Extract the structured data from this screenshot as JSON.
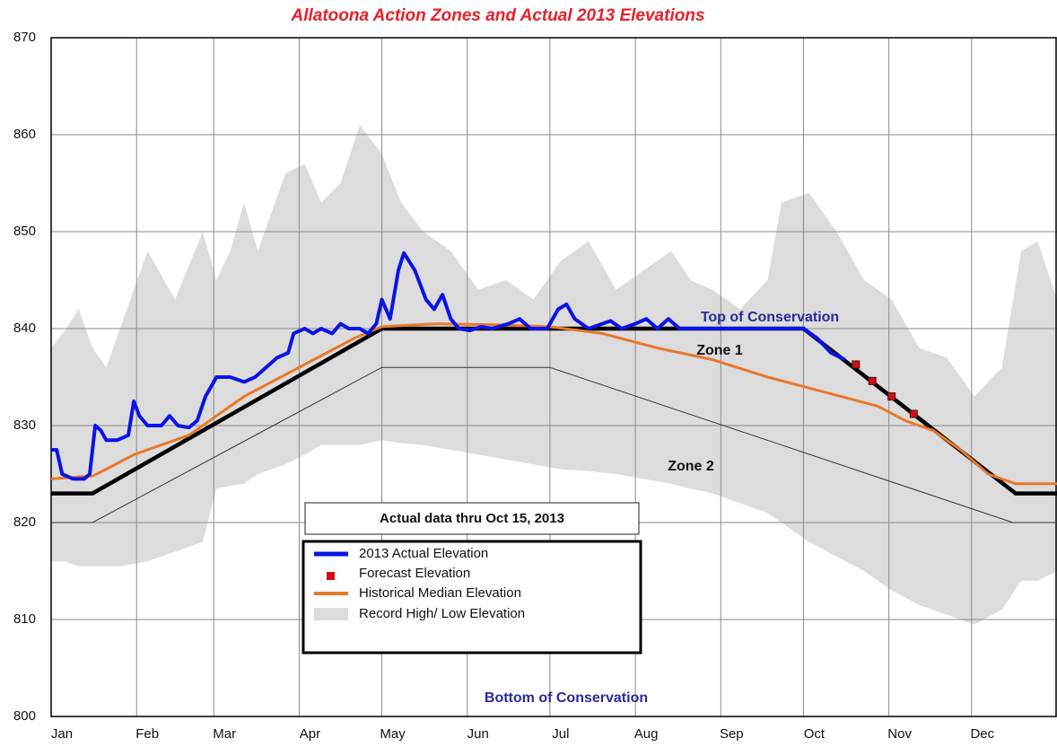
{
  "chart_data": {
    "type": "line",
    "title": "Allatoona Action Zones and Actual 2013 Elevations",
    "xlim": [
      0,
      365
    ],
    "xticks": [
      {
        "value": 0,
        "label": "Jan"
      },
      {
        "value": 31,
        "label": "Feb"
      },
      {
        "value": 59,
        "label": "Mar"
      },
      {
        "value": 90,
        "label": "Apr"
      },
      {
        "value": 120,
        "label": "May"
      },
      {
        "value": 151,
        "label": "Jun"
      },
      {
        "value": 181,
        "label": "Jul"
      },
      {
        "value": 212,
        "label": "Aug"
      },
      {
        "value": 243,
        "label": "Sep"
      },
      {
        "value": 273,
        "label": "Oct"
      },
      {
        "value": 304,
        "label": "Nov"
      },
      {
        "value": 334,
        "label": "Dec"
      }
    ],
    "ylim": [
      800,
      870
    ],
    "yticks": [
      800,
      810,
      820,
      830,
      840,
      850,
      860,
      870
    ],
    "grid": true,
    "series": [
      {
        "name": "2013 Actual Elevation",
        "color": "#0a14e6",
        "x": [
          0,
          2,
          4,
          8,
          12,
          14,
          16,
          18,
          20,
          24,
          28,
          30,
          32,
          35,
          40,
          43,
          46,
          50,
          53,
          56,
          60,
          65,
          70,
          74,
          78,
          82,
          86,
          88,
          92,
          95,
          98,
          102,
          105,
          108,
          112,
          115,
          118,
          120,
          123,
          126,
          128,
          132,
          136,
          139,
          142,
          145,
          148,
          152,
          156,
          160,
          166,
          170,
          174,
          180,
          184,
          187,
          190,
          195,
          200,
          203,
          207,
          212,
          216,
          220,
          224,
          228,
          235,
          240,
          250,
          260,
          273,
          278,
          283,
          288
        ],
        "values": [
          827.5,
          827.5,
          825,
          824.5,
          824.5,
          825,
          830,
          829.5,
          828.5,
          828.5,
          829,
          832.5,
          831,
          830,
          830,
          831,
          830,
          829.8,
          830.5,
          833,
          835,
          835,
          834.5,
          835,
          836,
          837,
          837.5,
          839.5,
          840,
          839.5,
          840,
          839.5,
          840.5,
          840,
          840,
          839.5,
          840.5,
          843,
          841,
          846,
          847.8,
          846,
          843,
          842,
          843.5,
          841,
          840,
          839.8,
          840.2,
          840,
          840.5,
          841,
          840,
          840,
          842,
          842.5,
          841,
          840,
          840.5,
          840.8,
          840,
          840.5,
          841,
          840,
          841,
          840,
          840,
          840,
          840,
          840,
          840,
          839,
          837.5,
          836.8
        ]
      },
      {
        "name": "Forecast Elevation",
        "color": "#d01010",
        "marker": "square",
        "x": [
          292,
          298,
          305,
          313
        ],
        "values": [
          836.3,
          834.6,
          833,
          831.2
        ]
      },
      {
        "name": "Historical Median Elevation",
        "color": "#e8782a",
        "x": [
          0,
          15,
          20,
          30,
          40,
          50,
          60,
          70,
          80,
          90,
          100,
          110,
          120,
          140,
          160,
          181,
          200,
          220,
          240,
          260,
          280,
          300,
          310,
          320,
          330,
          340,
          350,
          365
        ],
        "values": [
          824.5,
          824.8,
          825.5,
          827,
          828,
          829,
          831,
          833,
          834.5,
          836,
          837.5,
          839,
          840.2,
          840.5,
          840.4,
          840.2,
          839.5,
          838,
          836.8,
          835,
          833.5,
          832,
          830.5,
          829.5,
          827.5,
          825,
          824,
          824
        ]
      },
      {
        "name": "Record High/ Low Elevation",
        "color": "#dcdcdc",
        "style": "band",
        "x": [
          0,
          5,
          10,
          15,
          20,
          25,
          35,
          45,
          55,
          60,
          65,
          70,
          75,
          85,
          92,
          98,
          105,
          112,
          120,
          127,
          135,
          145,
          155,
          165,
          175,
          185,
          195,
          205,
          215,
          225,
          232,
          240,
          250,
          260,
          265,
          275,
          285,
          295,
          305,
          315,
          325,
          335,
          345,
          352,
          358,
          365
        ],
        "values": [
          838,
          839.8,
          842,
          838,
          836,
          840,
          848,
          843,
          850,
          845,
          848,
          853,
          848,
          856,
          857,
          853,
          855,
          861,
          858,
          853,
          850,
          848,
          844,
          845,
          843,
          847,
          849,
          844,
          846,
          848,
          845,
          844,
          842,
          845,
          853,
          854,
          850,
          845,
          843,
          838,
          837,
          833,
          836,
          848,
          849,
          843
        ],
        "low": [
          816,
          816,
          815.5,
          815.5,
          815.5,
          815.5,
          816,
          817,
          818,
          823.5,
          823.8,
          824,
          825,
          826,
          827,
          828,
          828,
          828,
          828.5,
          828.2,
          828,
          827.5,
          827,
          826.5,
          826,
          825.5,
          825.3,
          825,
          824.5,
          824,
          823.5,
          823,
          822,
          821,
          820,
          818,
          816.5,
          815,
          813,
          811.5,
          810.5,
          809.5,
          811,
          814,
          814,
          815
        ]
      }
    ],
    "guides": [
      {
        "color": "#000000",
        "width": 4.5,
        "x": [
          0,
          15,
          120,
          273,
          350,
          365
        ],
        "values": [
          823,
          823,
          840,
          840,
          823,
          823
        ]
      },
      {
        "color": "#333333",
        "width": 1,
        "x": [
          0,
          15,
          120,
          181,
          349,
          365
        ],
        "values": [
          820,
          820,
          836,
          836,
          820,
          820
        ]
      }
    ],
    "annotations": [
      "Top of Conservation",
      "Zone 1",
      "Zone 2",
      "Bottom of Conservation"
    ],
    "note": "Actual data thru Oct  15, 2013"
  }
}
